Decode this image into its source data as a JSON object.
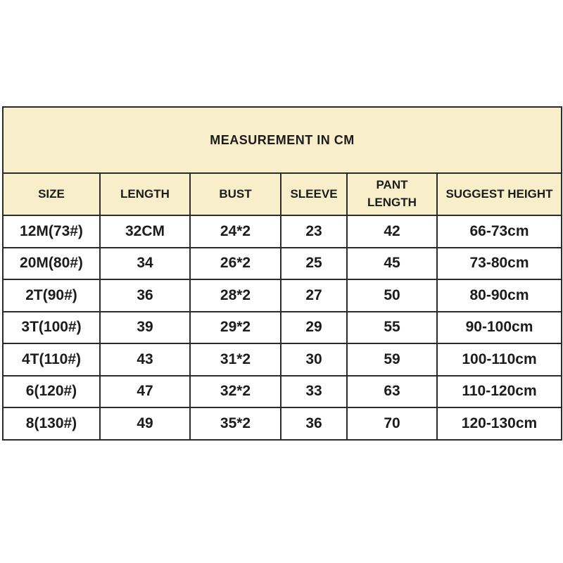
{
  "page": {
    "background_color": "#ffffff"
  },
  "table": {
    "title": "MEASUREMENT IN CM",
    "columns": [
      "SIZE",
      "LENGTH",
      "BUST",
      "SLEEVE",
      "PANT LENGTH",
      "SUGGEST HEIGHT"
    ],
    "rows": [
      [
        "12M(73#)",
        "32CM",
        "24*2",
        "23",
        "42",
        "66-73cm"
      ],
      [
        "20M(80#)",
        "34",
        "26*2",
        "25",
        "45",
        "73-80cm"
      ],
      [
        "2T(90#)",
        "36",
        "28*2",
        "27",
        "50",
        "80-90cm"
      ],
      [
        "3T(100#)",
        "39",
        "29*2",
        "29",
        "55",
        "90-100cm"
      ],
      [
        "4T(110#)",
        "43",
        "31*2",
        "30",
        "59",
        "100-110cm"
      ],
      [
        "6(120#)",
        "47",
        "32*2",
        "33",
        "63",
        "110-120cm"
      ],
      [
        "8(130#)",
        "49",
        "35*2",
        "36",
        "70",
        "120-130cm"
      ]
    ],
    "colors": {
      "header_background": "#f8eec9",
      "row_background": "#ffffff",
      "border": "#2b2b2b",
      "text": "#1c1c1c"
    }
  }
}
